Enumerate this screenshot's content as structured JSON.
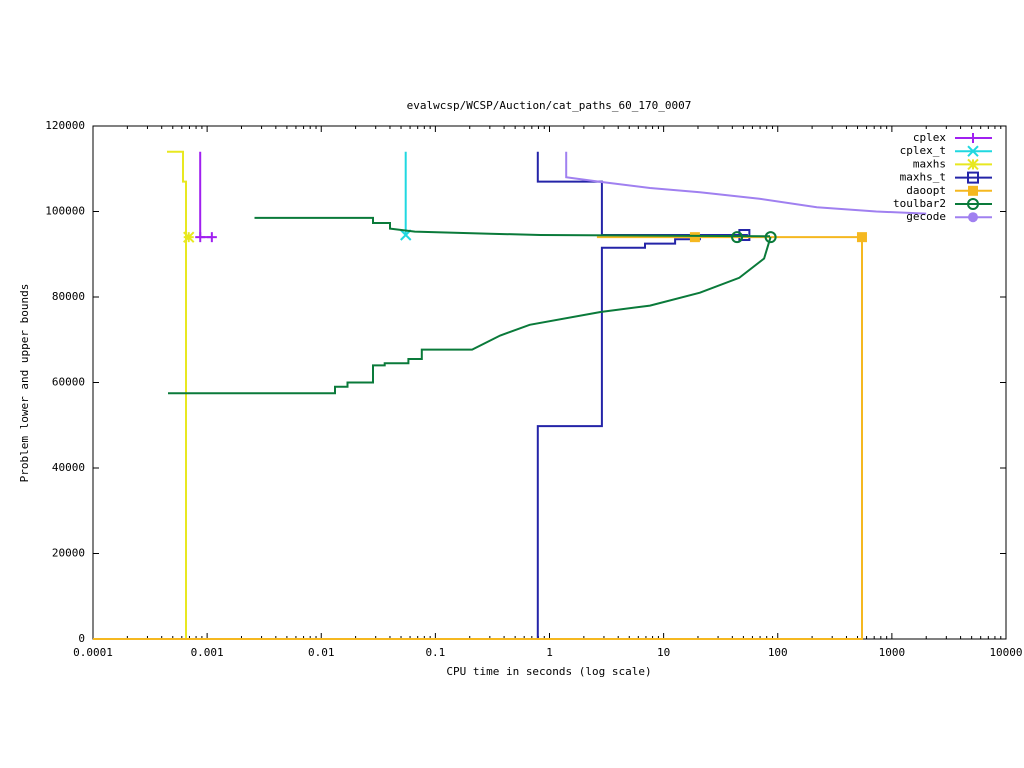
{
  "chart_data": {
    "type": "line",
    "title": "evalwcsp/WCSP/Auction/cat_paths_60_170_0007",
    "x_label": "CPU time in seconds (log scale)",
    "y_label": "Problem lower and upper bounds",
    "xscale": "log",
    "xlim": [
      0.0001,
      10000
    ],
    "xticks": [
      0.0001,
      0.001,
      0.01,
      0.1,
      1,
      10,
      100,
      1000,
      10000
    ],
    "ylim": [
      0,
      120000
    ],
    "yticks": [
      0,
      20000,
      40000,
      60000,
      80000,
      100000,
      120000
    ],
    "legend": "top-right",
    "series": [
      {
        "name": "cplex",
        "color": "#a020f0",
        "marker": "plus",
        "x": [
          0.00087,
          0.00087,
          0.0011
        ],
        "values": [
          114000,
          94000,
          94000
        ],
        "points_x": [
          0.00087,
          0.0011
        ],
        "points_y": [
          94000,
          94000
        ]
      },
      {
        "name": "cplex_t",
        "color": "#20d8e0",
        "marker": "cross",
        "x": [
          0.055,
          0.055
        ],
        "values": [
          114000,
          94500
        ],
        "points_x": [
          0.055
        ],
        "points_y": [
          94500
        ]
      },
      {
        "name": "maxhs",
        "color": "#e8e820",
        "marker": "star",
        "x": [
          0.000445,
          0.000615,
          0.000615,
          0.000653,
          0.000653
        ],
        "values": [
          114000,
          114000,
          107000,
          107000,
          0
        ],
        "points_x": [
          0.00069
        ],
        "points_y": [
          94000
        ]
      },
      {
        "name": "maxhs_t",
        "color": "#2424a8",
        "marker": "square",
        "x": [
          0.79,
          0.79,
          2.88,
          2.88,
          54.8,
          null,
          0.79,
          0.79,
          2.88,
          2.88,
          6.87,
          6.87,
          12.6,
          12.6,
          20.8,
          20.8,
          54.8
        ],
        "values": [
          114000,
          107000,
          107000,
          94500,
          94500,
          null,
          0,
          49800,
          49800,
          91500,
          91500,
          92500,
          92500,
          93500,
          93500,
          94500,
          94500
        ],
        "points_x": [
          51
        ],
        "points_y": [
          94500
        ]
      },
      {
        "name": "daoopt",
        "color": "#f5b820",
        "marker": "filled-square",
        "x": [
          0.0001,
          547,
          547,
          2.6
        ],
        "values": [
          0,
          0,
          94000,
          94000
        ],
        "points_x": [
          18.8,
          547
        ],
        "points_y": [
          94000,
          94000
        ]
      },
      {
        "name": "toulbar2",
        "color": "#0a7a3a",
        "marker": "circle",
        "x": [
          0.0026,
          0.0284,
          0.0284,
          0.04,
          0.04,
          0.066,
          0.3,
          0.83,
          85.5,
          null,
          0.000454,
          0.0132,
          0.0132,
          0.017,
          0.017,
          0.0284,
          0.0284,
          0.036,
          0.036,
          0.058,
          0.058,
          0.076,
          0.076,
          0.21,
          0.37,
          0.67,
          2.8,
          7.6,
          20.8,
          46,
          76,
          86.6
        ],
        "values": [
          98500,
          98500,
          97300,
          97300,
          96000,
          95300,
          94800,
          94500,
          94200,
          null,
          57500,
          57500,
          59000,
          59000,
          60000,
          60000,
          64000,
          64000,
          64500,
          64500,
          65500,
          65500,
          67700,
          67700,
          71000,
          73500,
          76500,
          78000,
          81000,
          84500,
          89000,
          94000
        ],
        "points_x": [
          44,
          86.6
        ],
        "points_y": [
          94000,
          94000
        ]
      },
      {
        "name": "gecode",
        "color": "#a080f0",
        "marker": "filled-circle",
        "x": [
          1.4,
          1.4,
          2.7,
          7.6,
          20.8,
          69,
          220,
          730,
          2000
        ],
        "values": [
          114000,
          108000,
          107000,
          105500,
          104500,
          103000,
          101000,
          100000,
          99500
        ],
        "points_x": [],
        "points_y": []
      }
    ]
  }
}
